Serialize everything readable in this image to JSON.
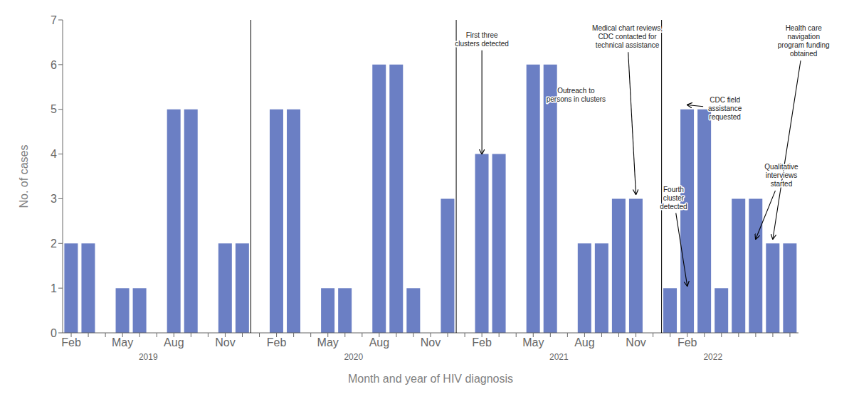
{
  "chart_data": {
    "type": "bar",
    "xlabel": "Month and year of HIV diagnosis",
    "ylabel": "No. of cases",
    "categories": [
      "Feb",
      null,
      null,
      "May",
      null,
      null,
      "Aug",
      null,
      null,
      "Nov",
      null,
      null,
      "Feb",
      null,
      null,
      "May",
      null,
      null,
      "Aug",
      null,
      null,
      "Nov",
      null,
      null,
      "Feb",
      null,
      null,
      "May",
      null,
      null,
      "Aug",
      null,
      null,
      "Nov",
      null,
      null,
      "Feb",
      null,
      null,
      null,
      null,
      null,
      null
    ],
    "values": [
      2,
      2,
      0,
      1,
      1,
      0,
      5,
      5,
      0,
      2,
      2,
      0,
      5,
      5,
      0,
      1,
      1,
      0,
      6,
      6,
      1,
      0,
      3,
      0,
      4,
      4,
      0,
      6,
      6,
      0,
      2,
      2,
      3,
      3,
      0,
      1,
      5,
      5,
      1,
      3,
      3,
      2,
      2
    ],
    "color": "#6b7fc4",
    "ylim": [
      0,
      7
    ],
    "yticks": [
      0,
      1,
      2,
      3,
      4,
      5,
      6,
      7
    ],
    "grid": false,
    "year_labels": [
      {
        "text": "2019",
        "x": 4.5
      },
      {
        "text": "2020",
        "x": 16.5
      },
      {
        "text": "2021",
        "x": 28.5
      },
      {
        "text": "2022",
        "x": 37.5
      }
    ],
    "year_separators": [
      10.5,
      22.5,
      34.5
    ],
    "annotations": [
      {
        "text": "First three\nclusters detected",
        "x": 24,
        "y": 4.0,
        "text_x": 24.0,
        "text_y": 6.75
      },
      {
        "text": "Outreach to\npersons in clusters",
        "x": 28,
        "y": 5.2,
        "text_x": 29.5,
        "text_y": 5.5
      },
      {
        "text": "Medical chart reviews,\nCDC contacted for\ntechnical assistance",
        "x": 33,
        "y": 3.1,
        "text_x": 32.5,
        "text_y": 6.9
      },
      {
        "text": "CDC field\nassistance\nrequested",
        "x": 36,
        "y": 5.1,
        "text_x": 38.2,
        "text_y": 5.3
      },
      {
        "text": "Fourth\ncluster\ndetected",
        "x": 36,
        "y": 1.05,
        "text_x": 35.2,
        "text_y": 3.3
      },
      {
        "text": "Health care\nnavigation\nprogram funding\nobtained",
        "x": 41,
        "y": 2.1,
        "text_x": 42.8,
        "text_y": 6.9
      },
      {
        "text": "Qualitative\ninterviews\nstarted",
        "x": 40,
        "y": 2.1,
        "text_x": 41.5,
        "text_y": 3.8
      }
    ]
  }
}
